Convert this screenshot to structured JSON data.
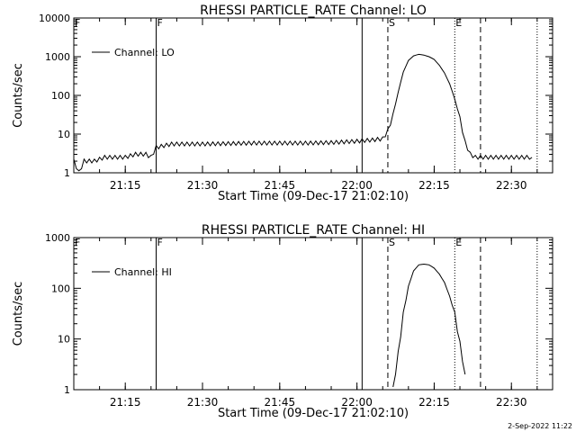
{
  "footer": {
    "timestamp": "2-Sep-2022 11:22"
  },
  "chart_data": [
    {
      "type": "line",
      "title": "RHESSI PARTICLE_RATE Channel: LO",
      "xlabel": "Start Time (09-Dec-17 21:02:10)",
      "ylabel": "Counts/sec",
      "y_scale": "log",
      "ylim": [
        1,
        10000
      ],
      "y_ticks": [
        1,
        10,
        100,
        1000,
        10000
      ],
      "y_tick_labels": [
        "1",
        "10",
        "100",
        "1000",
        "10000"
      ],
      "xlim": [
        "21:05",
        "22:38"
      ],
      "x_ticks": [
        "21:15",
        "21:30",
        "21:45",
        "22:00",
        "22:15",
        "22:30"
      ],
      "legend": {
        "label": "Channel: LO",
        "position": "top-left"
      },
      "markers": [
        {
          "time": "21:21",
          "label": "F",
          "style": "solid"
        },
        {
          "time": "22:01",
          "label": "",
          "style": "solid"
        },
        {
          "time": "22:06",
          "label": "S",
          "style": "dashed"
        },
        {
          "time": "22:24",
          "label": "",
          "style": "dashed"
        },
        {
          "time": "22:19",
          "label": "E",
          "style": "dotted"
        },
        {
          "time": "22:35",
          "label": "",
          "style": "dotted"
        }
      ],
      "border_labels": [
        {
          "time": "21:05",
          "label": "F"
        }
      ],
      "series": [
        {
          "points": [
            [
              "21:05",
              2
            ],
            [
              "21:06",
              1
            ],
            [
              "21:07",
              2
            ],
            [
              "21:09",
              2
            ],
            [
              "21:11",
              2.5
            ],
            [
              "21:13",
              2.5
            ],
            [
              "21:15",
              2.5
            ],
            [
              "21:17",
              3
            ],
            [
              "21:19",
              3
            ],
            [
              "21:20",
              2.5
            ],
            [
              "21:21",
              4.5
            ],
            [
              "21:24",
              5.5
            ],
            [
              "21:30",
              5.5
            ],
            [
              "21:40",
              5.8
            ],
            [
              "21:50",
              5.8
            ],
            [
              "21:55",
              6
            ],
            [
              "22:00",
              6.5
            ],
            [
              "22:03",
              7
            ],
            [
              "22:05",
              7.5
            ],
            [
              "22:06",
              12
            ],
            [
              "22:07",
              30
            ],
            [
              "22:08",
              120
            ],
            [
              "22:09",
              400
            ],
            [
              "22:10",
              800
            ],
            [
              "22:11",
              1050
            ],
            [
              "22:12",
              1150
            ],
            [
              "22:13",
              1100
            ],
            [
              "22:14",
              1000
            ],
            [
              "22:15",
              850
            ],
            [
              "22:16",
              600
            ],
            [
              "22:17",
              380
            ],
            [
              "22:18",
              200
            ],
            [
              "22:19",
              80
            ],
            [
              "22:20",
              25
            ],
            [
              "22:21",
              6
            ],
            [
              "22:22",
              3
            ],
            [
              "22:23",
              2.5
            ],
            [
              "22:25",
              2.5
            ],
            [
              "22:28",
              2.5
            ],
            [
              "22:30",
              2.5
            ],
            [
              "22:32",
              2.5
            ],
            [
              "22:34",
              2.5
            ]
          ]
        }
      ]
    },
    {
      "type": "line",
      "title": "RHESSI PARTICLE_RATE Channel: HI",
      "xlabel": "Start Time (09-Dec-17 21:02:10)",
      "ylabel": "Counts/sec",
      "y_scale": "log",
      "ylim": [
        1,
        1000
      ],
      "y_ticks": [
        1,
        10,
        100,
        1000
      ],
      "y_tick_labels": [
        "1",
        "10",
        "100",
        "1000"
      ],
      "xlim": [
        "21:05",
        "22:38"
      ],
      "x_ticks": [
        "21:15",
        "21:30",
        "21:45",
        "22:00",
        "22:15",
        "22:30"
      ],
      "legend": {
        "label": "Channel: HI",
        "position": "top-left"
      },
      "markers": [
        {
          "time": "21:21",
          "label": "F",
          "style": "solid"
        },
        {
          "time": "22:01",
          "label": "",
          "style": "solid"
        },
        {
          "time": "22:06",
          "label": "S",
          "style": "dashed"
        },
        {
          "time": "22:24",
          "label": "",
          "style": "dashed"
        },
        {
          "time": "22:19",
          "label": "E",
          "style": "dotted"
        },
        {
          "time": "22:35",
          "label": "",
          "style": "dotted"
        }
      ],
      "border_labels": [
        {
          "time": "21:05",
          "label": "F"
        }
      ],
      "series": [
        {
          "points": [
            [
              "22:07",
              1
            ],
            [
              "22:08",
              5
            ],
            [
              "22:09",
              30
            ],
            [
              "22:10",
              110
            ],
            [
              "22:11",
              220
            ],
            [
              "22:12",
              290
            ],
            [
              "22:13",
              300
            ],
            [
              "22:14",
              290
            ],
            [
              "22:15",
              250
            ],
            [
              "22:16",
              190
            ],
            [
              "22:17",
              130
            ],
            [
              "22:18",
              70
            ],
            [
              "22:19",
              30
            ],
            [
              "22:20",
              8
            ],
            [
              "22:21",
              2
            ]
          ]
        }
      ]
    }
  ]
}
